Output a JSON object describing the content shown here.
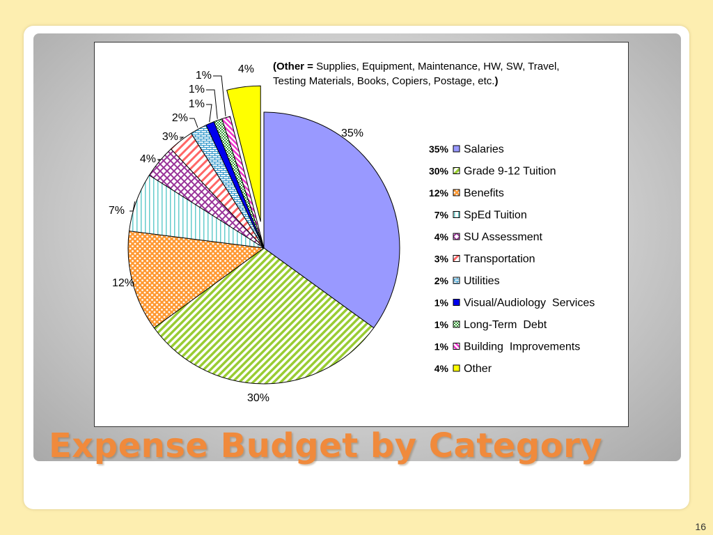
{
  "slide": {
    "title": "Expense Budget by Category",
    "page_number": "16"
  },
  "chart_data": {
    "type": "pie",
    "note_prefix": "(Other = ",
    "note_line1": "Supplies, Equipment, Maintenance, HW, SW, Travel,",
    "note_line2": "Testing Materials, Books, Copiers, Postage, etc.",
    "note_suffix": ")",
    "exploded_slice": "Other",
    "slices": [
      {
        "label": "Salaries",
        "value": 35,
        "display": "35%",
        "color": "#9999ff",
        "pattern": "solid"
      },
      {
        "label": "Grade 9-12 Tuition",
        "value": 30,
        "display": "30%",
        "color": "#99cc33",
        "pattern": "diagonal-stripes"
      },
      {
        "label": "Benefits",
        "value": 12,
        "display": "12%",
        "color": "#ff9933",
        "pattern": "dots"
      },
      {
        "label": "SpEd Tuition",
        "value": 7,
        "display": "7%",
        "color": "#66cccc",
        "pattern": "vertical-lines"
      },
      {
        "label": "SU Assessment",
        "value": 4,
        "display": "4%",
        "color": "#993399",
        "pattern": "grid"
      },
      {
        "label": "Transportation",
        "value": 3,
        "display": "3%",
        "color": "#ff6666",
        "pattern": "diagonal-stripes"
      },
      {
        "label": "Utilities",
        "value": 2,
        "display": "2%",
        "color": "#3399cc",
        "pattern": "brick"
      },
      {
        "label": "Visual/Audiology  Services",
        "value": 1,
        "display": "1%",
        "color": "#0000ee",
        "pattern": "solid"
      },
      {
        "label": "Long-Term  Debt",
        "value": 1,
        "display": "1%",
        "color": "#339933",
        "pattern": "checker"
      },
      {
        "label": "Building  Improvements",
        "value": 1,
        "display": "1%",
        "color": "#ee33cc",
        "pattern": "diagonal-stripes"
      },
      {
        "label": "Other",
        "value": 4,
        "display": "4%",
        "color": "#ffff00",
        "pattern": "solid"
      }
    ]
  }
}
